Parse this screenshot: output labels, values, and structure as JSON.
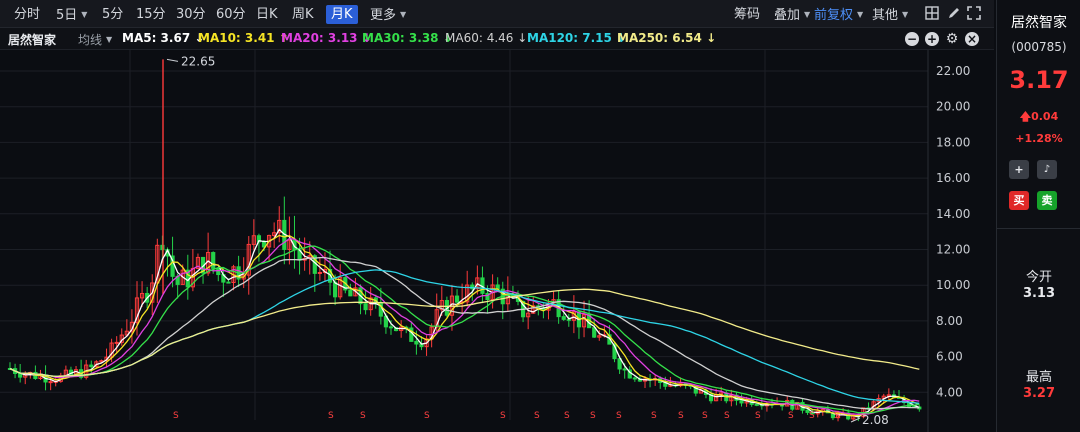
{
  "toolbar": {
    "periods": [
      "分时",
      "5日",
      "5分",
      "15分",
      "30分",
      "60分",
      "日K",
      "周K",
      "月K",
      "更多"
    ],
    "active_period": "月K",
    "right_items": [
      "筹码",
      "叠加",
      "前复权",
      "其他"
    ]
  },
  "legend": {
    "stock_name": "居然智家",
    "ma_toggle": "均线",
    "items": [
      {
        "label": "MA5: 3.67",
        "arrow": "↓",
        "color": "#ffffff"
      },
      {
        "label": "MA10: 3.41",
        "arrow": "↑",
        "color": "#f5e425"
      },
      {
        "label": "MA20: 3.13",
        "arrow": "↓",
        "color": "#e040e0"
      },
      {
        "label": "MA30: 3.38",
        "arrow": "↓",
        "color": "#35e04a"
      },
      {
        "label": "MA60: 4.46",
        "arrow": "↓",
        "color": "#d0d0d0"
      },
      {
        "label": "MA120: 7.15",
        "arrow": "↓",
        "color": "#2ed4e6"
      },
      {
        "label": "MA250: 6.54",
        "arrow": "↓",
        "color": "#f2eb8a"
      }
    ]
  },
  "chart_data": {
    "type": "candlestick",
    "y_ticks": [
      "22.00",
      "20.00",
      "18.00",
      "16.00",
      "14.00",
      "12.00",
      "10.00",
      "8.00",
      "6.00",
      "4.00"
    ],
    "ylim": [
      2.0,
      22.5
    ],
    "max_label": "22.65",
    "min_label": "2.08",
    "signal_marker": "S",
    "up_color": "#ff3b3b",
    "down_color": "#24d24a"
  },
  "panel": {
    "name": "居然智家",
    "code": "(000785)",
    "price": "3.17",
    "change": "0.04",
    "change_pct": "+1.28%",
    "buy_label": "买",
    "sell_label": "卖",
    "open_label": "今开",
    "open_value": "3.13",
    "high_label": "最高",
    "high_value": "3.27"
  }
}
